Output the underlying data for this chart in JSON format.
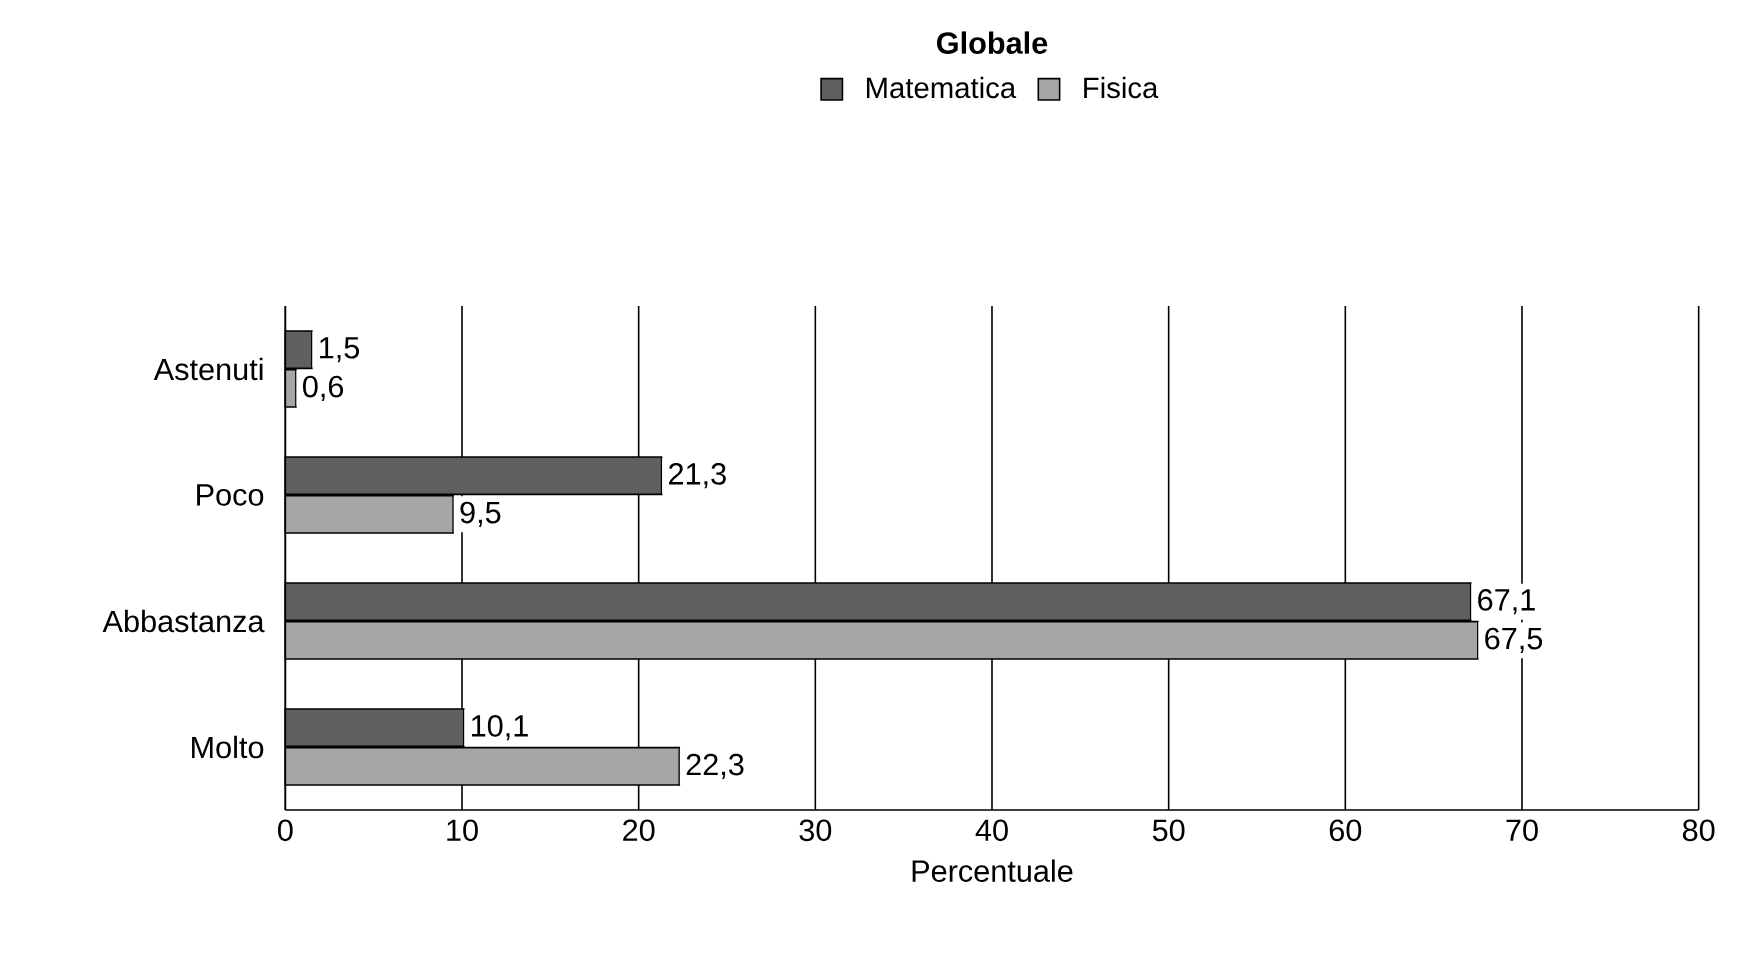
{
  "chart_data": {
    "type": "bar",
    "orientation": "horizontal",
    "title": "Globale",
    "xlabel": "Percentuale",
    "categories": [
      "Astenuti",
      "Poco",
      "Abbastanza",
      "Molto"
    ],
    "series": [
      {
        "name": "Matematica",
        "color": "#606060",
        "values": [
          1.5,
          21.3,
          67.1,
          10.1
        ],
        "value_labels": [
          "1,5",
          "21,3",
          "67,1",
          "10,1"
        ]
      },
      {
        "name": "Fisica",
        "color": "#a6a6a8",
        "values": [
          0.6,
          9.5,
          67.5,
          22.3
        ],
        "value_labels": [
          "0,6",
          "9,5",
          "67,5",
          "22,3"
        ]
      }
    ],
    "xlim": [
      0,
      80
    ],
    "xticks": [
      0,
      10,
      20,
      30,
      40,
      50,
      60,
      70,
      80
    ],
    "grid": "x",
    "legend": "top"
  }
}
